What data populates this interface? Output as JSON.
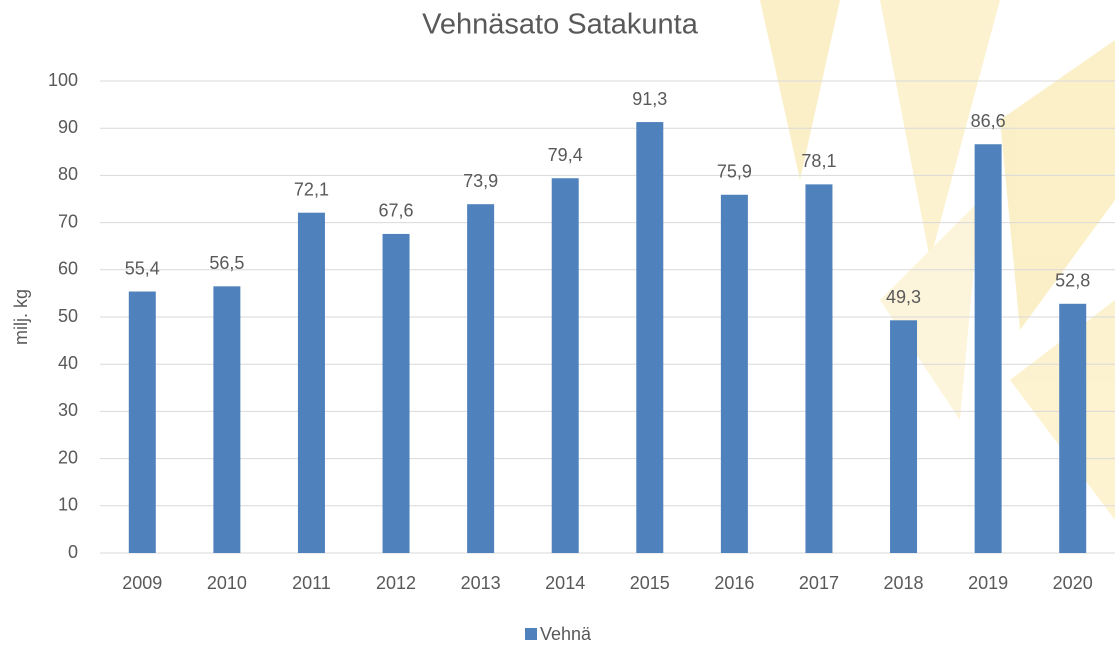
{
  "chart_data": {
    "type": "bar",
    "title": "Vehnäsato Satakunta",
    "y_label": "milj. kg",
    "categories": [
      "2009",
      "2010",
      "2011",
      "2012",
      "2013",
      "2014",
      "2015",
      "2016",
      "2017",
      "2018",
      "2019",
      "2020"
    ],
    "series": [
      {
        "name": "Vehnä",
        "color": "#4f81bd",
        "values": [
          55.4,
          56.5,
          72.1,
          67.6,
          73.9,
          79.4,
          91.3,
          75.9,
          78.1,
          49.3,
          86.6,
          52.8
        ],
        "value_labels": [
          "55,4",
          "56,5",
          "72,1",
          "67,6",
          "73,9",
          "79,4",
          "91,3",
          "75,9",
          "78,1",
          "49,3",
          "86,6",
          "52,8"
        ]
      }
    ],
    "ylim": [
      0,
      100
    ],
    "yticks": [
      0,
      10,
      20,
      30,
      40,
      50,
      60,
      70,
      80,
      90,
      100
    ],
    "grid": true,
    "legend": "bottom"
  }
}
